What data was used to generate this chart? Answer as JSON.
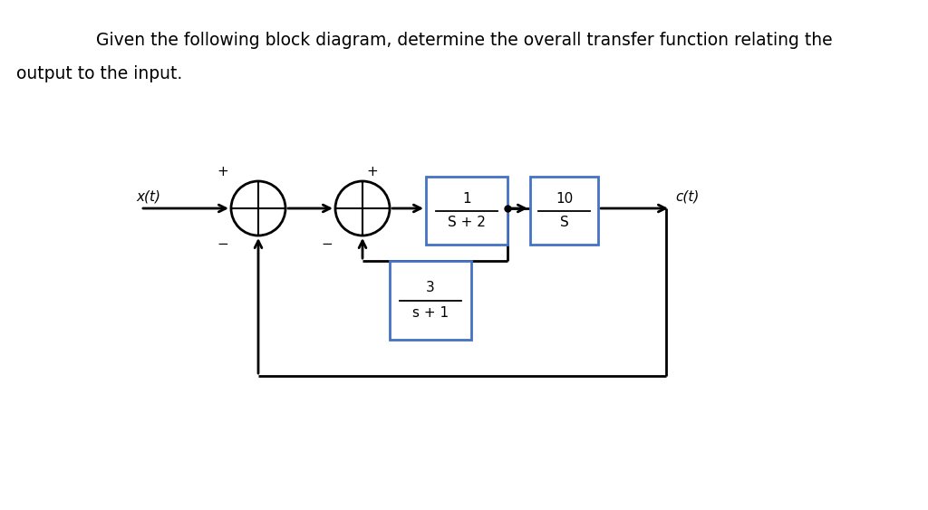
{
  "title_line1": "Given the following block diagram, determine the overall transfer function relating the",
  "title_line2": "output to the input.",
  "bg_color": "#ffffff",
  "text_color": "#000000",
  "block_edge_color": "#4472C4",
  "block_face_color": "#ffffff",
  "font_size_title": 13.5,
  "font_size_block": 11,
  "font_size_label": 11,
  "block1_num": "1",
  "block1_den": "S + 2",
  "block2_num": "10",
  "block2_den": "S",
  "block3_num": "3",
  "block3_den": "s + 1",
  "input_label": "x(t)",
  "output_label": "c(t)",
  "sj1_plus": "+",
  "sj1_minus": "−",
  "sj2_plus": "+",
  "sj2_minus": "−"
}
